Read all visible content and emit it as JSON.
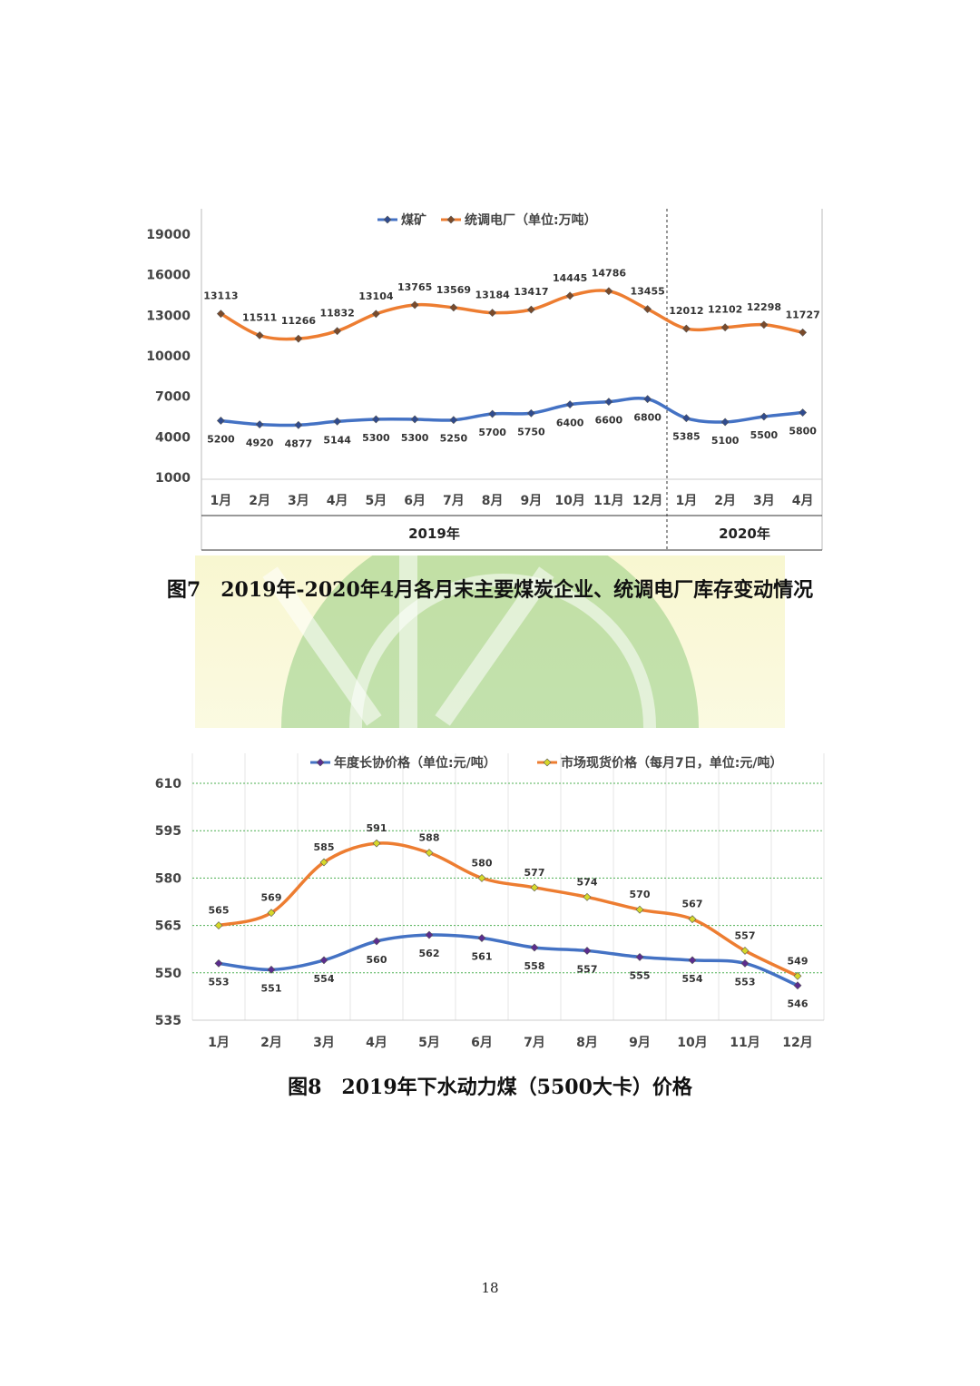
{
  "chart_data": [
    {
      "type": "line",
      "legend": [
        "煤矿",
        "统调电厂（单位:万吨）"
      ],
      "categories": [
        "1月",
        "2月",
        "3月",
        "4月",
        "5月",
        "6月",
        "7月",
        "8月",
        "9月",
        "10月",
        "11月",
        "12月",
        "1月",
        "2月",
        "3月",
        "4月"
      ],
      "groups": [
        {
          "label": "2019年",
          "span": 12
        },
        {
          "label": "2020年",
          "span": 4
        }
      ],
      "series": [
        {
          "name": "煤矿",
          "color": "#4472C4",
          "marker": "#2F4B8F",
          "values": [
            5200,
            4920,
            4877,
            5144,
            5300,
            5300,
            5250,
            5700,
            5750,
            6400,
            6600,
            6800,
            5385,
            5100,
            5500,
            5800
          ]
        },
        {
          "name": "统调电厂",
          "color": "#ED7D31",
          "marker": "#7A4A2A",
          "values": [
            13113,
            11511,
            11266,
            11832,
            13104,
            13765,
            13569,
            13184,
            13417,
            14445,
            14786,
            13455,
            12012,
            12102,
            12298,
            11727
          ]
        }
      ],
      "yticks": [
        19000,
        16000,
        13000,
        10000,
        7000,
        4000,
        1000
      ],
      "ylim": [
        1000,
        19000
      ],
      "title": "",
      "xlabel": "",
      "ylabel": ""
    },
    {
      "type": "line",
      "legend": [
        "年度长协价格（单位:元/吨）",
        "市场现货价格（每月7日，单位:元/吨）"
      ],
      "categories": [
        "1月",
        "2月",
        "3月",
        "4月",
        "5月",
        "6月",
        "7月",
        "8月",
        "9月",
        "10月",
        "11月",
        "12月"
      ],
      "series": [
        {
          "name": "年度长协价格",
          "color": "#4472C4",
          "marker": "#5B2C8F",
          "values": [
            553,
            551,
            554,
            560,
            562,
            561,
            558,
            557,
            555,
            554,
            553,
            546
          ]
        },
        {
          "name": "市场现货价格",
          "color": "#ED7D31",
          "marker": "#D6D82A",
          "values": [
            565,
            569,
            585,
            591,
            588,
            580,
            577,
            574,
            570,
            567,
            557,
            549
          ]
        }
      ],
      "yticks": [
        610,
        595,
        580,
        565,
        550,
        535
      ],
      "ylim": [
        535,
        610
      ],
      "title": "",
      "xlabel": "",
      "ylabel": ""
    }
  ],
  "captions": {
    "figure7": "图7　2019年-2020年4月各月末主要煤炭企业、统调电厂库存变动情况",
    "figure8": "图8　2019年下水动力煤（5500大卡）价格"
  },
  "page_number": "18"
}
